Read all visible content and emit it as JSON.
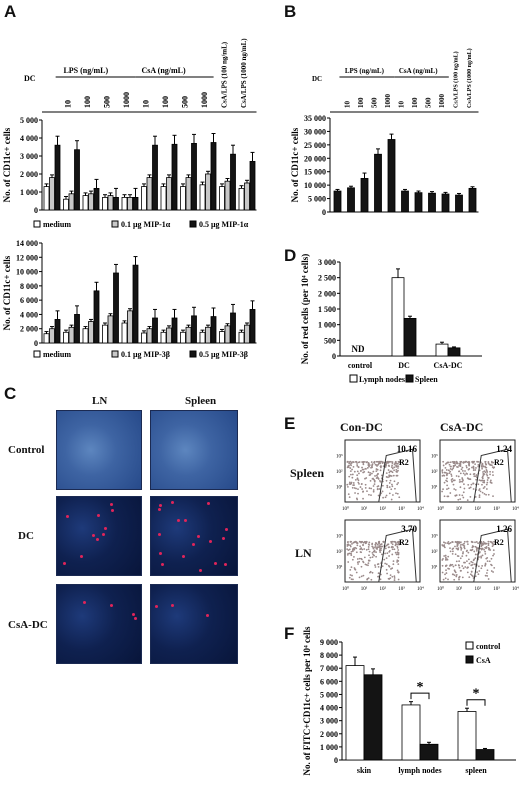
{
  "panels": {
    "A": "A",
    "B": "B",
    "C": "C",
    "D": "D",
    "E": "E",
    "F": "F"
  },
  "colors": {
    "white_bar": "#ffffff",
    "grey_bar": "#c8c8c8",
    "black_bar": "#141414",
    "pink": "#e0245a",
    "micro_blue": "#2a4f8f"
  },
  "headers": {
    "dc": "DC",
    "lps": "LPS (ng/mL)",
    "csa": "CsA (ng/mL)",
    "doses": [
      "10",
      "100",
      "500",
      "1000"
    ],
    "csa_lps_100": "CsA/LPS (100 ng/mL)",
    "csa_lps_1000": "CsA/LPS (1000 ng/mL)"
  },
  "chart_data": [
    {
      "id": "A1",
      "type": "bar",
      "ylabel": "No. of CD11c+ cells",
      "ylim": [
        0,
        5000
      ],
      "yticks": [
        "0",
        "1 000",
        "2 000",
        "3 000",
        "4 000",
        "5 000"
      ],
      "legend": [
        "medium",
        "0.1  μg MIP-1α",
        "0.5  μg MIP-1α"
      ],
      "groups": 11,
      "series": [
        {
          "name": "medium",
          "values": [
            1300,
            600,
            800,
            700,
            700,
            1300,
            1300,
            1300,
            1400,
            1300,
            1200
          ]
        },
        {
          "name": "0.1  μg MIP-1α",
          "values": [
            1800,
            900,
            900,
            800,
            700,
            1800,
            1800,
            1800,
            2000,
            1600,
            1500
          ]
        },
        {
          "name": "0.5  μg MIP-1α",
          "values": [
            3600,
            3350,
            1200,
            700,
            700,
            3600,
            3650,
            3700,
            3750,
            3100,
            2700
          ]
        }
      ]
    },
    {
      "id": "A2",
      "type": "bar",
      "ylabel": "No. of CD11c+ cells",
      "ylim": [
        0,
        14000
      ],
      "yticks": [
        "0",
        "2 000",
        "4 000",
        "6 000",
        "8 000",
        "10 000",
        "12 000",
        "14 000"
      ],
      "legend": [
        "medium",
        "0.1  μg MIP-3β",
        "0.5  μg MIP-3β"
      ],
      "groups": 11,
      "series": [
        {
          "name": "medium",
          "values": [
            1300,
            1500,
            2000,
            2500,
            2800,
            1400,
            1500,
            1500,
            1500,
            1600,
            1500
          ]
        },
        {
          "name": "0.1  μg MIP-3β",
          "values": [
            2000,
            2200,
            3000,
            3800,
            4500,
            2000,
            2100,
            2200,
            2200,
            2400,
            2500
          ]
        },
        {
          "name": "0.5  μg MIP-3β",
          "values": [
            3300,
            4000,
            7300,
            9800,
            10900,
            3500,
            3500,
            3800,
            3700,
            4200,
            4700
          ]
        }
      ]
    },
    {
      "id": "B",
      "type": "bar",
      "ylabel": "No. of CD11c+ cells",
      "ylim": [
        0,
        35000
      ],
      "yticks": [
        "0",
        "5 000",
        "10 000",
        "15 000",
        "20 000",
        "25 000",
        "30 000",
        "35 000"
      ],
      "groups": 11,
      "series": [
        {
          "name": "",
          "values": [
            7800,
            9000,
            12500,
            21500,
            27000,
            7800,
            7200,
            7000,
            6700,
            6300,
            8800
          ]
        }
      ]
    },
    {
      "id": "D",
      "type": "bar",
      "ylabel": "No. of red cells (per 10⁴ cells)",
      "ylim": [
        0,
        3000
      ],
      "yticks": [
        "0",
        "500",
        "1 000",
        "1 500",
        "2 000",
        "2 500",
        "3 000"
      ],
      "categories": [
        "control",
        "DC",
        "CsA-DC"
      ],
      "nd": "ND",
      "legend": [
        "Lymph nodes",
        "Spleen"
      ],
      "series": [
        {
          "name": "Lymph nodes",
          "values": [
            0,
            2500,
            380
          ]
        },
        {
          "name": "Spleen",
          "values": [
            0,
            1200,
            260
          ]
        }
      ]
    },
    {
      "id": "F",
      "type": "bar",
      "ylabel": "No. of FITC+CD11c+ cells per 10⁴ cells",
      "ylim": [
        0,
        9000
      ],
      "yticks": [
        "0",
        "1 000",
        "2 000",
        "3 000",
        "4 000",
        "5 000",
        "6 000",
        "7 000",
        "8 000",
        "9 000"
      ],
      "categories": [
        "skin",
        "lymph nodes",
        "spleen"
      ],
      "legend": [
        "control",
        "CsA"
      ],
      "star": "*",
      "series": [
        {
          "name": "control",
          "values": [
            7200,
            4200,
            3700
          ]
        },
        {
          "name": "CsA",
          "values": [
            6500,
            1200,
            800
          ]
        }
      ]
    }
  ],
  "panel_c": {
    "col_labels": [
      "LN",
      "Spleen"
    ],
    "row_labels": [
      "Control",
      "DC",
      "CsA-DC"
    ]
  },
  "panel_e": {
    "col_labels": [
      "Con-DC",
      "CsA-DC"
    ],
    "row_labels": [
      "Spleen",
      "LN"
    ],
    "values": [
      "10.16",
      "1.24",
      "3.70",
      "1.26"
    ],
    "gate": "R2",
    "ticks": [
      "10⁰",
      "10¹",
      "10²",
      "10³",
      "10⁴"
    ]
  }
}
